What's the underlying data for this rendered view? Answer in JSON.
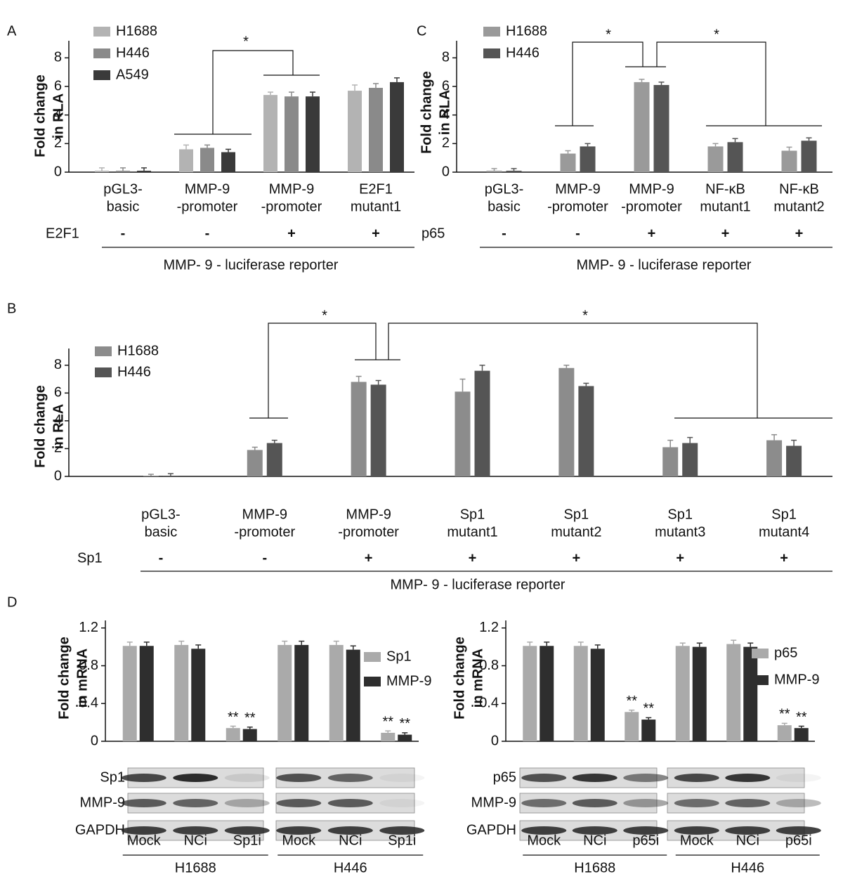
{
  "chart_data": [
    {
      "type": "bar",
      "panel": "A",
      "ylabel": [
        "Fold change",
        "in RLA"
      ],
      "categories": [
        [
          "pGL3-",
          "basic"
        ],
        [
          "MMP-9",
          "-promoter"
        ],
        [
          "MMP-9",
          "-promoter"
        ],
        [
          "E2F1",
          "mutant1"
        ]
      ],
      "series": [
        {
          "name": "H1688",
          "color": "#b3b3b3",
          "values": [
            0.1,
            1.6,
            5.4,
            5.7
          ],
          "errors": [
            0.2,
            0.3,
            0.2,
            0.4
          ]
        },
        {
          "name": "H446",
          "color": "#8a8a8a",
          "values": [
            0.1,
            1.7,
            5.3,
            5.9
          ],
          "errors": [
            0.2,
            0.2,
            0.3,
            0.3
          ]
        },
        {
          "name": "A549",
          "color": "#3a3a3a",
          "values": [
            0.1,
            1.4,
            5.3,
            6.3
          ],
          "errors": [
            0.2,
            0.2,
            0.3,
            0.3
          ]
        }
      ],
      "ylim": [
        0,
        9
      ],
      "yticks": [
        0,
        2,
        4,
        6,
        8
      ],
      "treatment": {
        "label": "E2F1",
        "signs": [
          "-",
          "-",
          "+",
          "+"
        ]
      },
      "reporter": "MMP- 9 - luciferase reporter",
      "significance": [
        "*"
      ]
    },
    {
      "type": "bar",
      "panel": "C",
      "ylabel": [
        "Fold change",
        "in RLA"
      ],
      "categories": [
        [
          "pGL3-",
          "basic"
        ],
        [
          "MMP-9",
          "-promoter"
        ],
        [
          "MMP-9",
          "-promoter"
        ],
        [
          "NF-κB",
          "mutant1"
        ],
        [
          "NF-κB",
          "mutant2"
        ]
      ],
      "series": [
        {
          "name": "H1688",
          "color": "#9a9a9a",
          "values": [
            0.1,
            1.3,
            6.3,
            1.8,
            1.5
          ],
          "errors": [
            0.15,
            0.2,
            0.2,
            0.2,
            0.25
          ]
        },
        {
          "name": "H446",
          "color": "#555555",
          "values": [
            0.1,
            1.8,
            6.1,
            2.1,
            2.2
          ],
          "errors": [
            0.15,
            0.2,
            0.2,
            0.25,
            0.2
          ]
        }
      ],
      "ylim": [
        0,
        9
      ],
      "yticks": [
        0,
        2,
        4,
        6,
        8
      ],
      "treatment": {
        "label": "p65",
        "signs": [
          "-",
          "-",
          "+",
          "+",
          "+"
        ]
      },
      "reporter": "MMP- 9 - luciferase reporter",
      "significance": [
        "*",
        "*"
      ]
    },
    {
      "type": "bar",
      "panel": "B",
      "ylabel": [
        "Fold change",
        "in RLA"
      ],
      "categories": [
        [
          "pGL3-",
          "basic"
        ],
        [
          "MMP-9",
          "-promoter"
        ],
        [
          "MMP-9",
          "-promoter"
        ],
        [
          "Sp1",
          "mutant1"
        ],
        [
          "Sp1",
          "mutant2"
        ],
        [
          "Sp1",
          "mutant3"
        ],
        [
          "Sp1",
          "mutant4"
        ]
      ],
      "series": [
        {
          "name": "H1688",
          "color": "#8c8c8c",
          "values": [
            0.05,
            1.9,
            6.8,
            6.1,
            7.8,
            2.1,
            2.6
          ],
          "errors": [
            0.1,
            0.2,
            0.4,
            0.9,
            0.2,
            0.5,
            0.4
          ]
        },
        {
          "name": "H446",
          "color": "#555555",
          "values": [
            0.05,
            2.4,
            6.6,
            7.6,
            6.5,
            2.4,
            2.2
          ],
          "errors": [
            0.15,
            0.2,
            0.3,
            0.4,
            0.2,
            0.4,
            0.4
          ]
        }
      ],
      "ylim": [
        0,
        9
      ],
      "yticks": [
        0,
        2,
        4,
        6,
        8
      ],
      "treatment": {
        "label": "Sp1",
        "signs": [
          "-",
          "-",
          "+",
          "+",
          "+",
          "+",
          "+"
        ]
      },
      "reporter": "MMP- 9 - luciferase reporter",
      "significance": [
        "*",
        "*"
      ]
    },
    {
      "type": "bar",
      "panel": "D",
      "ylabel": [
        "Fold change",
        "in mRNA"
      ],
      "categories": [
        "Mock",
        "NCi",
        "Sp1i",
        "Mock",
        "NCi",
        "Sp1i"
      ],
      "groups": [
        "H1688",
        "H446"
      ],
      "series": [
        {
          "name": "Sp1",
          "color": "#aaaaaa",
          "values": [
            1.01,
            1.02,
            0.14,
            1.02,
            1.02,
            0.09
          ],
          "errors": [
            0.04,
            0.04,
            0.02,
            0.04,
            0.04,
            0.02
          ]
        },
        {
          "name": "MMP-9",
          "color": "#2e2e2e",
          "values": [
            1.01,
            0.98,
            0.13,
            1.02,
            0.97,
            0.07
          ],
          "errors": [
            0.04,
            0.04,
            0.02,
            0.04,
            0.04,
            0.02
          ]
        }
      ],
      "ylim": [
        0,
        1.25
      ],
      "yticks": [
        0,
        0.4,
        0.8,
        1.2
      ],
      "blot_rows": [
        "Sp1",
        "MMP-9",
        "GAPDH"
      ],
      "significance": [
        "**",
        "**",
        "**",
        "**"
      ]
    },
    {
      "type": "bar",
      "ylabel": [
        "Fold change",
        "in mRNA"
      ],
      "categories": [
        "Mock",
        "NCi",
        "p65i",
        "Mock",
        "NCi",
        "p65i"
      ],
      "groups": [
        "H1688",
        "H446"
      ],
      "series": [
        {
          "name": "p65",
          "color": "#aaaaaa",
          "values": [
            1.01,
            1.01,
            0.31,
            1.01,
            1.03,
            0.17
          ],
          "errors": [
            0.04,
            0.04,
            0.02,
            0.03,
            0.04,
            0.02
          ]
        },
        {
          "name": "MMP-9",
          "color": "#2e2e2e",
          "values": [
            1.01,
            0.98,
            0.23,
            1.0,
            1.0,
            0.14
          ],
          "errors": [
            0.04,
            0.04,
            0.02,
            0.04,
            0.04,
            0.02
          ]
        }
      ],
      "ylim": [
        0,
        1.25
      ],
      "yticks": [
        0,
        0.4,
        0.8,
        1.2
      ],
      "blot_rows": [
        "p65",
        "MMP-9",
        "GAPDH"
      ],
      "significance": [
        "**",
        "**",
        "**",
        "**"
      ]
    }
  ]
}
